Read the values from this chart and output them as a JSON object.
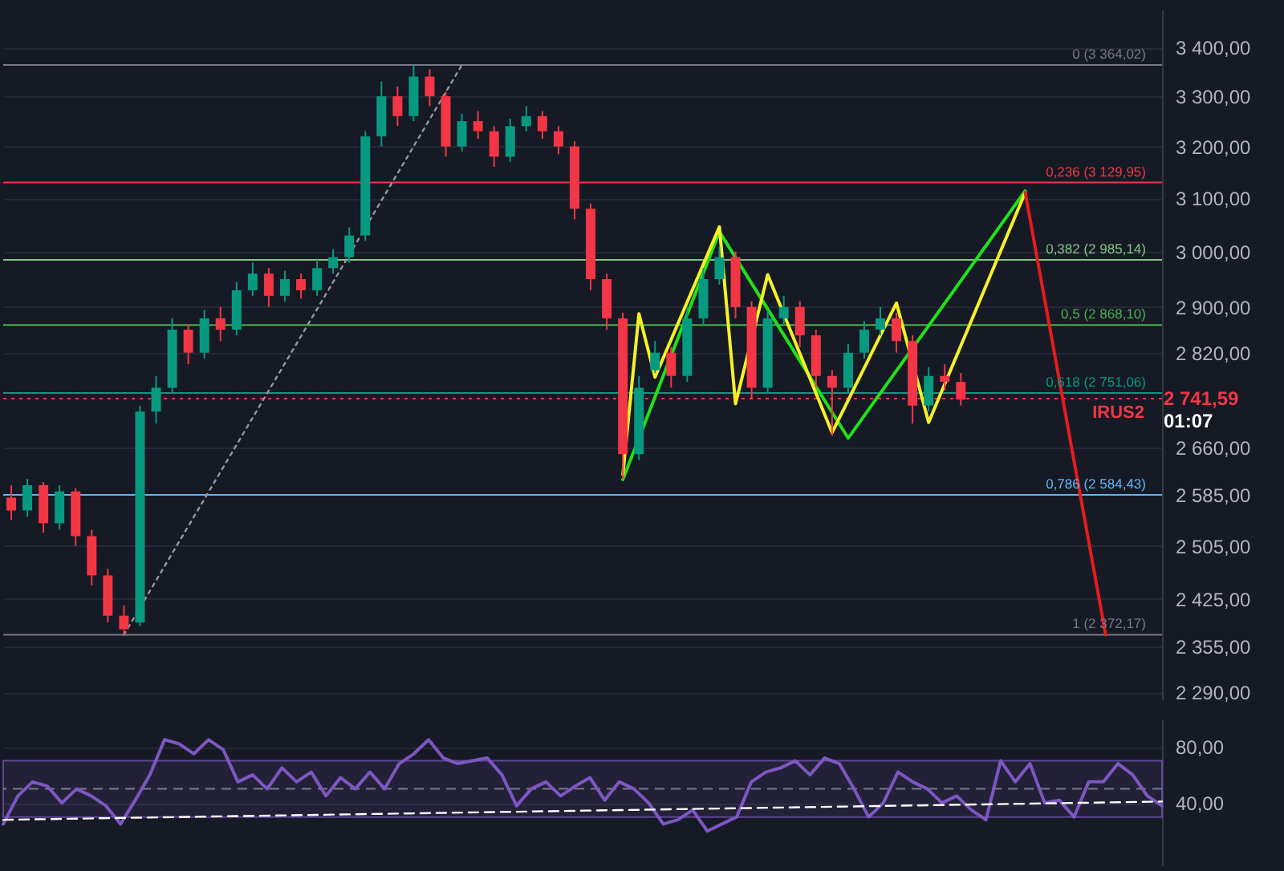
{
  "chart_data": [
    {
      "type": "candlestick",
      "categories": [
        null,
        null,
        null,
        null,
        null,
        null,
        null,
        null,
        null,
        null,
        null,
        null,
        null,
        null,
        null,
        null,
        null,
        null,
        null,
        null,
        null,
        null,
        null,
        null,
        null,
        null,
        null,
        null,
        null,
        null,
        null,
        null,
        null,
        null,
        null,
        null,
        null,
        null,
        null,
        null,
        null,
        null,
        null,
        null,
        null,
        null,
        null,
        null,
        null,
        null,
        null,
        null,
        null,
        null,
        null,
        null,
        null,
        null,
        null,
        null,
        null,
        null,
        null,
        null,
        null,
        null,
        null,
        null,
        null,
        null,
        null,
        null
      ],
      "ylim": [
        2280,
        3480
      ],
      "log": "y",
      "grid": "y",
      "tick_labels": "y",
      "yticks": [
        {
          "value": 2290,
          "label": "2 290,00"
        },
        {
          "value": 2355,
          "label": "2 355,00"
        },
        {
          "value": 2425,
          "label": "2 425,00"
        },
        {
          "value": 2505,
          "label": "2 505,00"
        },
        {
          "value": 2585,
          "label": "2 585,00"
        },
        {
          "value": 2660,
          "label": "2 660,00"
        },
        {
          "value": 2820,
          "label": "2 820,00"
        },
        {
          "value": 2900,
          "label": "2 900,00"
        },
        {
          "value": 3000,
          "label": "3 000,00"
        },
        {
          "value": 3100,
          "label": "3 100,00"
        },
        {
          "value": 3200,
          "label": "3 200,00"
        },
        {
          "value": 3300,
          "label": "3 300,00"
        },
        {
          "value": 3400,
          "label": "3 400,00"
        }
      ],
      "series": [
        {
          "type": "candlestick",
          "colors": [
            "#f23645",
            "#089981",
            "#f23645",
            "#089981",
            "#f23645",
            "#f23645",
            "#f23645",
            "#f23645",
            "#089981",
            "#089981",
            "#089981",
            "#f23645",
            "#089981",
            "#f23645",
            "#089981",
            "#089981",
            "#f23645",
            "#089981",
            "#f23645",
            "#089981",
            "#089981",
            "#089981",
            "#089981",
            "#089981",
            "#f23645",
            "#089981",
            "#f23645",
            "#f23645",
            "#089981",
            "#f23645",
            "#f23645",
            "#089981",
            "#089981",
            "#f23645",
            "#f23645",
            "#f23645",
            "#f23645",
            "#f23645",
            "#f23645",
            "#089981",
            "#089981",
            "#f23645",
            "#089981",
            "#089981",
            "#089981",
            "#f23645",
            "#f23645",
            "#089981",
            "#089981",
            "#f23645",
            "#f23645",
            "#f23645",
            "#089981",
            "#089981",
            "#089981",
            "#f23645",
            "#f23645",
            "#089981",
            "#f23645",
            "#f23645",
            null,
            null,
            null,
            null,
            null,
            null,
            null,
            null,
            null,
            null,
            null,
            null
          ],
          "ohlc": [
            [
              2580,
              2600,
              2545,
              2560
            ],
            [
              2560,
              2610,
              2550,
              2600
            ],
            [
              2600,
              2605,
              2525,
              2540
            ],
            [
              2540,
              2600,
              2530,
              2590
            ],
            [
              2590,
              2595,
              2505,
              2520
            ],
            [
              2520,
              2530,
              2445,
              2460
            ],
            [
              2460,
              2470,
              2390,
              2400
            ],
            [
              2400,
              2415,
              2372,
              2380
            ],
            [
              2390,
              2730,
              2385,
              2720
            ],
            [
              2720,
              2780,
              2700,
              2760
            ],
            [
              2760,
              2880,
              2750,
              2860
            ],
            [
              2860,
              2870,
              2800,
              2820
            ],
            [
              2820,
              2895,
              2810,
              2880
            ],
            [
              2880,
              2900,
              2840,
              2860
            ],
            [
              2860,
              2945,
              2850,
              2930
            ],
            [
              2930,
              2980,
              2920,
              2960
            ],
            [
              2960,
              2970,
              2900,
              2920
            ],
            [
              2920,
              2965,
              2910,
              2950
            ],
            [
              2950,
              2960,
              2915,
              2930
            ],
            [
              2930,
              2985,
              2920,
              2970
            ],
            [
              2970,
              3005,
              2960,
              2990
            ],
            [
              2990,
              3045,
              2980,
              3030
            ],
            [
              3030,
              3230,
              3020,
              3220
            ],
            [
              3220,
              3330,
              3200,
              3300
            ],
            [
              3300,
              3320,
              3240,
              3260
            ],
            [
              3260,
              3364,
              3250,
              3340
            ],
            [
              3340,
              3355,
              3280,
              3300
            ],
            [
              3300,
              3310,
              3180,
              3200
            ],
            [
              3200,
              3265,
              3190,
              3250
            ],
            [
              3250,
              3270,
              3215,
              3230
            ],
            [
              3230,
              3240,
              3160,
              3180
            ],
            [
              3180,
              3255,
              3170,
              3240
            ],
            [
              3240,
              3280,
              3230,
              3260
            ],
            [
              3260,
              3270,
              3215,
              3230
            ],
            [
              3230,
              3240,
              3185,
              3200
            ],
            [
              3200,
              3210,
              3060,
              3080
            ],
            [
              3080,
              3090,
              2930,
              2950
            ],
            [
              2950,
              2960,
              2860,
              2880
            ],
            [
              2880,
              2890,
              2610,
              2650
            ],
            [
              2650,
              2780,
              2640,
              2760
            ],
            [
              2790,
              2840,
              2785,
              2820
            ],
            [
              2820,
              2830,
              2760,
              2780
            ],
            [
              2780,
              2900,
              2770,
              2880
            ],
            [
              2880,
              2970,
              2870,
              2950
            ],
            [
              2950,
              3010,
              2940,
              2990
            ],
            [
              2990,
              3000,
              2880,
              2900
            ],
            [
              2900,
              2910,
              2740,
              2760
            ],
            [
              2760,
              2895,
              2750,
              2880
            ],
            [
              2880,
              2920,
              2870,
              2900
            ],
            [
              2900,
              2910,
              2830,
              2850
            ],
            [
              2850,
              2860,
              2760,
              2780
            ],
            [
              2780,
              2790,
              2680,
              2760
            ],
            [
              2760,
              2835,
              2750,
              2820
            ],
            [
              2820,
              2875,
              2810,
              2860
            ],
            [
              2860,
              2900,
              2850,
              2880
            ],
            [
              2880,
              2890,
              2820,
              2840
            ],
            [
              2840,
              2850,
              2700,
              2730
            ],
            [
              2730,
              2795,
              2720,
              2780
            ],
            [
              2780,
              2800,
              2755,
              2770
            ],
            [
              2770,
              2785,
              2730,
              2740
            ],
            null,
            null,
            null,
            null,
            null,
            null,
            null,
            null,
            null,
            null,
            null,
            null
          ]
        },
        {
          "type": "line",
          "values": [
            null,
            null,
            null,
            null,
            null,
            null,
            null,
            2372.17,
            null,
            null,
            null,
            null,
            null,
            null,
            null,
            null,
            null,
            null,
            null,
            null,
            null,
            null,
            null,
            null,
            null,
            null,
            null,
            null,
            3364.02,
            null,
            null,
            null,
            null,
            null,
            null,
            null,
            null,
            null,
            null,
            null,
            null,
            null,
            null,
            null,
            null,
            null,
            null,
            null,
            null,
            null,
            null,
            null,
            null,
            null,
            null,
            null,
            null,
            null,
            null,
            null,
            null,
            null,
            null,
            null,
            null,
            null,
            null,
            null,
            null,
            null,
            null,
            null
          ],
          "color": "#9598a1",
          "line_style": "dotted"
        },
        {
          "type": "line",
          "values": [
            null,
            null,
            null,
            null,
            null,
            null,
            null,
            null,
            null,
            null,
            null,
            null,
            null,
            null,
            null,
            null,
            null,
            null,
            null,
            null,
            null,
            null,
            null,
            null,
            null,
            null,
            null,
            null,
            null,
            null,
            null,
            null,
            null,
            null,
            null,
            null,
            null,
            null,
            2609,
            null,
            null,
            null,
            null,
            null,
            3037,
            null,
            null,
            null,
            null,
            null,
            null,
            null,
            2676,
            null,
            null,
            null,
            null,
            null,
            null,
            null,
            null,
            null,
            null,
            3114,
            null,
            null,
            null,
            null,
            null,
            null,
            null,
            null
          ],
          "color": "#22e01b"
        },
        {
          "type": "line",
          "values": [
            null,
            null,
            null,
            null,
            null,
            null,
            null,
            null,
            null,
            null,
            null,
            null,
            null,
            null,
            null,
            null,
            null,
            null,
            null,
            null,
            null,
            null,
            null,
            null,
            null,
            null,
            null,
            null,
            null,
            null,
            null,
            null,
            null,
            null,
            null,
            null,
            null,
            null,
            2617,
            2888,
            2778,
            null,
            null,
            null,
            3046,
            2733,
            null,
            2958,
            null,
            null,
            null,
            2685,
            null,
            null,
            null,
            2907,
            null,
            2702,
            null,
            null,
            null,
            null,
            null,
            3111,
            null,
            null,
            null,
            null,
            null,
            null,
            null,
            null
          ],
          "color": "#f5f125"
        },
        {
          "type": "line",
          "values": [
            null,
            null,
            null,
            null,
            null,
            null,
            null,
            null,
            null,
            null,
            null,
            null,
            null,
            null,
            null,
            null,
            null,
            null,
            null,
            null,
            null,
            null,
            null,
            null,
            null,
            null,
            null,
            null,
            null,
            null,
            null,
            null,
            null,
            null,
            null,
            null,
            null,
            null,
            null,
            null,
            null,
            null,
            null,
            null,
            null,
            null,
            null,
            null,
            null,
            null,
            null,
            null,
            null,
            null,
            null,
            null,
            null,
            null,
            null,
            null,
            null,
            null,
            null,
            3111,
            null,
            null,
            null,
            null,
            2372,
            null,
            null,
            null
          ],
          "color": "#e51c1c"
        }
      ],
      "ref_lines": [
        {
          "axis": "y",
          "value": 3364.02,
          "label": "0 (3 364,02)",
          "color": "#787b86"
        },
        {
          "axis": "y",
          "value": 3129.95,
          "label": "0,236 (3 129,95)",
          "color": "#f23645"
        },
        {
          "axis": "y",
          "value": 2985.14,
          "label": "0,382 (2 985,14)",
          "color": "#81c784"
        },
        {
          "axis": "y",
          "value": 2868.1,
          "label": "0,5 (2 868,10)",
          "color": "#4caf50"
        },
        {
          "axis": "y",
          "value": 2751.06,
          "label": "0,618 (2 751,06)",
          "color": "#089981"
        },
        {
          "axis": "y",
          "value": 2584.43,
          "label": "0,786 (2 584,43)",
          "color": "#64b5f6"
        },
        {
          "axis": "y",
          "value": 2372.17,
          "label": "1 (2 372,17)",
          "color": "#787b86"
        },
        {
          "axis": "y",
          "value": 2741.59,
          "color": "#f23645",
          "line_style": "dotted"
        }
      ],
      "annotations": [
        {
          "text": "IRUS2",
          "y": 2741.59
        },
        "2 741,59",
        "01:07"
      ]
    },
    {
      "type": "line",
      "categories": [
        null,
        null,
        null,
        null,
        null,
        null,
        null,
        null,
        null,
        null,
        null,
        null,
        null,
        null,
        null,
        null,
        null,
        null,
        null,
        null,
        null,
        null,
        null,
        null,
        null,
        null,
        null,
        null,
        null,
        null,
        null,
        null,
        null,
        null,
        null,
        null,
        null,
        null,
        null,
        null,
        null,
        null,
        null,
        null,
        null,
        null,
        null,
        null,
        null,
        null,
        null,
        null,
        null,
        null,
        null,
        null,
        null,
        null,
        null,
        null,
        null,
        null,
        null,
        null,
        null,
        null,
        null,
        null,
        null,
        null,
        null,
        null,
        null,
        null,
        null,
        null,
        null,
        null,
        null,
        null
      ],
      "ylim": [
        -5,
        100
      ],
      "grid": "y",
      "tick_labels": "y",
      "yticks": [
        {
          "value": 40,
          "label": "40,00"
        },
        {
          "value": 80,
          "label": "80,00"
        }
      ],
      "bands": [
        {
          "axis": "y",
          "from": 30,
          "to": 70,
          "color": "#7e57c2"
        }
      ],
      "ref_lines": [
        {
          "axis": "y",
          "value": 50,
          "color": "#787b86",
          "line_style": "dashed"
        }
      ],
      "series": [
        {
          "color": "#7e57c2",
          "values": [
            25,
            45,
            55,
            52,
            40,
            50,
            45,
            38,
            25,
            42,
            60,
            85,
            82,
            75,
            85,
            78,
            55,
            60,
            50,
            65,
            55,
            62,
            45,
            58,
            50,
            62,
            50,
            68,
            75,
            85,
            72,
            68,
            70,
            72,
            60,
            38,
            50,
            55,
            45,
            52,
            58,
            42,
            55,
            50,
            40,
            25,
            28,
            35,
            20,
            25,
            30,
            55,
            62,
            65,
            70,
            60,
            72,
            68,
            50,
            30,
            40,
            62,
            55,
            50,
            40,
            45,
            35,
            28,
            70,
            55,
            68,
            40,
            42,
            30,
            55,
            55,
            68,
            60,
            45,
            38
          ]
        },
        {
          "type": "line",
          "values": [
            28,
            null,
            null,
            null,
            null,
            null,
            null,
            null,
            null,
            null,
            null,
            null,
            null,
            null,
            null,
            null,
            null,
            null,
            null,
            null,
            null,
            null,
            null,
            null,
            null,
            null,
            null,
            null,
            null,
            null,
            null,
            null,
            null,
            null,
            null,
            null,
            null,
            null,
            null,
            null,
            null,
            null,
            null,
            null,
            null,
            null,
            null,
            null,
            null,
            null,
            null,
            null,
            null,
            null,
            null,
            null,
            null,
            null,
            null,
            null,
            null,
            null,
            null,
            null,
            null,
            null,
            null,
            null,
            null,
            null,
            null,
            null,
            null,
            null,
            null,
            null,
            null,
            null,
            null,
            41
          ],
          "color": "#ffffff",
          "line_style": "dashed"
        }
      ]
    }
  ]
}
